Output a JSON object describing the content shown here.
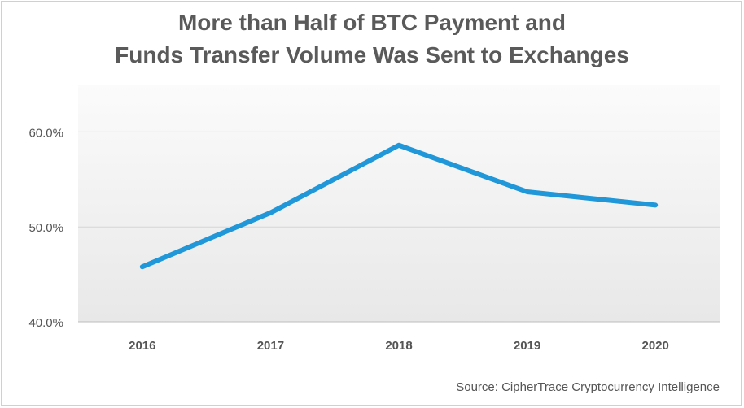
{
  "chart_data": {
    "type": "line",
    "title_line1": "More than Half of BTC Payment and",
    "title_line2": "Funds Transfer Volume Was Sent to Exchanges",
    "categories": [
      "2016",
      "2017",
      "2018",
      "2019",
      "2020"
    ],
    "series": [
      {
        "values": [
          45.8,
          51.5,
          58.6,
          53.7,
          52.3
        ]
      }
    ],
    "yticks": [
      40,
      50,
      60
    ],
    "ytick_labels": [
      "40.0%",
      "50.0%",
      "60.0%"
    ],
    "ylim": [
      40,
      65
    ],
    "xlabel": "",
    "ylabel": "",
    "grid": true,
    "legend": "none",
    "line_color": "#1f97d8",
    "plot_background": "#eeeeee",
    "source": "Source: CipherTrace Cryptocurrency Intelligence"
  }
}
